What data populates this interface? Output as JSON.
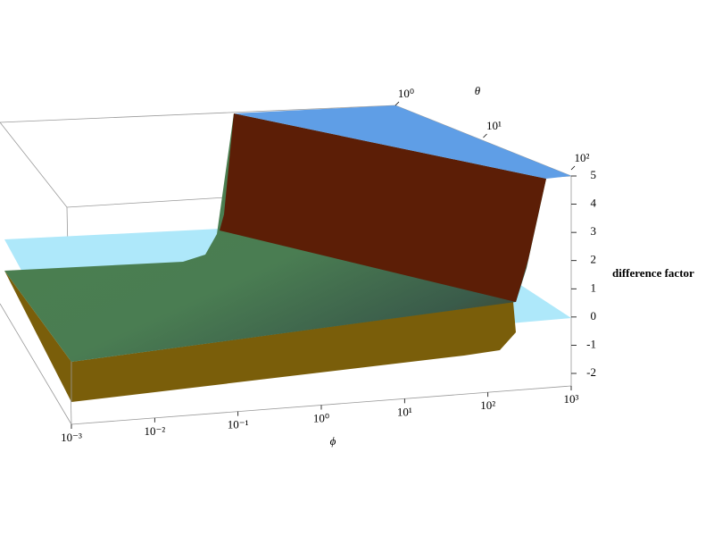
{
  "chart_data": {
    "type": "surface3d",
    "xlabel": "ϕ",
    "ylabel": "θ",
    "zlabel": "difference factor",
    "xlog": true,
    "ylog": true,
    "xlim": [
      0.001,
      1000
    ],
    "xticks": [
      {
        "value": 0.001,
        "label": "10⁻³"
      },
      {
        "value": 0.01,
        "label": "10⁻²"
      },
      {
        "value": 0.1,
        "label": "10⁻¹"
      },
      {
        "value": 1,
        "label": "10⁰"
      },
      {
        "value": 10,
        "label": "10¹"
      },
      {
        "value": 100,
        "label": "10²"
      },
      {
        "value": 1000,
        "label": "10³"
      }
    ],
    "ylim": [
      1,
      100
    ],
    "yticks": [
      {
        "value": 1,
        "label": "10⁰"
      },
      {
        "value": 10,
        "label": "10¹"
      },
      {
        "value": 100,
        "label": "10²"
      }
    ],
    "zlim": [
      -2,
      5
    ],
    "zticks": [
      -2,
      -1,
      0,
      1,
      2,
      3,
      4,
      5
    ]
  }
}
